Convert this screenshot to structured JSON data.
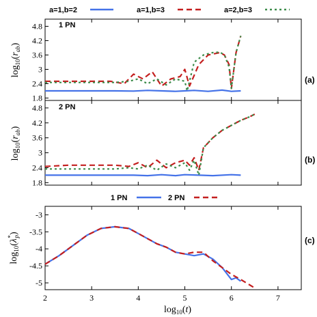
{
  "figure": {
    "x_label": "log₁₀(t)",
    "x_ticks": [
      "2",
      "3",
      "4",
      "5",
      "6",
      "7"
    ],
    "colors": {
      "blue": "#4472e8",
      "red": "#c41f1f",
      "green": "#3c8c4a"
    }
  },
  "chart_data": [
    {
      "type": "line",
      "panel_label": "1 PN",
      "tag": "(a)",
      "ylabel": "log₁₀(r_ab)",
      "y_ticks": [
        "1.8",
        "2.4",
        "3",
        "3.6",
        "4.2",
        "4.8"
      ],
      "xlim": [
        2,
        7.5
      ],
      "ylim": [
        1.7,
        5.1
      ],
      "legend_position": "top",
      "legend": [
        {
          "name": "a=1,b=2",
          "color": "blue",
          "dash": "solid"
        },
        {
          "name": "a=1,b=3",
          "color": "red",
          "dash": "dashed"
        },
        {
          "name": "a=2,b=3",
          "color": "green",
          "dash": "dotted"
        }
      ],
      "series": [
        {
          "name": "a=1,b=2",
          "color": "blue",
          "dash": "solid",
          "x": [
            2,
            2.5,
            3,
            3.5,
            3.9,
            4.2,
            4.5,
            4.8,
            5.0,
            5.2,
            5.5,
            5.8,
            6.0,
            6.2
          ],
          "y": [
            2.1,
            2.1,
            2.1,
            2.1,
            2.09,
            2.12,
            2.1,
            2.08,
            2.1,
            2.12,
            2.08,
            2.13,
            2.08,
            2.1
          ]
        },
        {
          "name": "a=1,b=3",
          "color": "red",
          "dash": "dashed",
          "x": [
            2,
            2.5,
            3,
            3.4,
            3.7,
            3.9,
            4.1,
            4.3,
            4.5,
            4.7,
            4.9,
            5.0,
            5.1,
            5.3,
            5.5,
            5.75,
            5.85,
            5.95,
            6.0,
            6.1,
            6.2
          ],
          "y": [
            2.5,
            2.5,
            2.5,
            2.5,
            2.4,
            2.8,
            2.6,
            2.9,
            2.3,
            2.6,
            2.7,
            3.0,
            2.3,
            3.2,
            3.6,
            3.7,
            3.6,
            3.2,
            2.2,
            3.7,
            4.4
          ]
        },
        {
          "name": "a=2,b=3",
          "color": "green",
          "dash": "dotted",
          "x": [
            2,
            2.5,
            3,
            3.5,
            3.8,
            4.0,
            4.2,
            4.4,
            4.6,
            4.8,
            5.0,
            5.05,
            5.2,
            5.4,
            5.6,
            5.75,
            5.85,
            5.95,
            6.0,
            6.1,
            6.2
          ],
          "y": [
            2.45,
            2.45,
            2.45,
            2.45,
            2.5,
            2.6,
            2.4,
            2.6,
            2.35,
            2.6,
            2.5,
            2.1,
            3.3,
            3.6,
            3.7,
            3.72,
            3.6,
            3.1,
            2.2,
            3.7,
            4.4
          ]
        }
      ]
    },
    {
      "type": "line",
      "panel_label": "2 PN",
      "tag": "(b)",
      "ylabel": "log₁₀(r_ab)",
      "y_ticks": [
        "1.8",
        "2.4",
        "3",
        "3.6",
        "4.2",
        "4.8"
      ],
      "xlim": [
        2,
        7.5
      ],
      "ylim": [
        1.7,
        5.1
      ],
      "series": [
        {
          "name": "a=1,b=2",
          "color": "blue",
          "dash": "solid",
          "x": [
            2,
            2.5,
            3,
            3.5,
            3.9,
            4.2,
            4.5,
            4.8,
            5.0,
            5.3,
            5.6,
            6.0,
            6.2
          ],
          "y": [
            2.1,
            2.1,
            2.1,
            2.1,
            2.1,
            2.08,
            2.12,
            2.08,
            2.12,
            2.1,
            2.08,
            2.12,
            2.1
          ]
        },
        {
          "name": "a=1,b=3",
          "color": "red",
          "dash": "dashed",
          "x": [
            2,
            2.5,
            3,
            3.5,
            3.8,
            4.0,
            4.2,
            4.4,
            4.6,
            4.8,
            5.0,
            5.1,
            5.2,
            5.3,
            5.4,
            5.6,
            5.8,
            6.0,
            6.2,
            6.4,
            6.5
          ],
          "y": [
            2.45,
            2.5,
            2.5,
            2.5,
            2.45,
            2.6,
            2.4,
            2.7,
            2.4,
            2.6,
            2.7,
            2.5,
            2.8,
            2.3,
            3.2,
            3.6,
            3.9,
            4.1,
            4.3,
            4.45,
            4.55
          ]
        },
        {
          "name": "a=2,b=3",
          "color": "green",
          "dash": "dotted",
          "x": [
            2,
            2.5,
            3,
            3.5,
            3.8,
            4.0,
            4.2,
            4.4,
            4.6,
            4.8,
            5.0,
            5.1,
            5.2,
            5.3,
            5.4,
            5.6,
            5.8,
            6.0,
            6.2,
            6.4,
            6.5
          ],
          "y": [
            2.35,
            2.35,
            2.35,
            2.35,
            2.4,
            2.35,
            2.5,
            2.3,
            2.55,
            2.4,
            2.6,
            2.3,
            2.7,
            2.1,
            3.2,
            3.6,
            3.9,
            4.1,
            4.3,
            4.45,
            4.55
          ]
        }
      ]
    },
    {
      "type": "line",
      "tag": "(c)",
      "ylabel": "log₁₀(λ*_p)",
      "y_ticks": [
        "-3",
        "-3.5",
        "-4",
        "-4.5",
        "-5"
      ],
      "xlim": [
        2,
        7.5
      ],
      "ylim": [
        -5.2,
        -2.75
      ],
      "legend_position": "top",
      "legend": [
        {
          "name": "1 PN",
          "color": "blue",
          "dash": "solid"
        },
        {
          "name": "2 PN",
          "color": "red",
          "dash": "dashed"
        }
      ],
      "series": [
        {
          "name": "1 PN",
          "color": "blue",
          "dash": "solid",
          "x": [
            2.0,
            2.3,
            2.6,
            2.9,
            3.2,
            3.5,
            3.8,
            4.0,
            4.2,
            4.4,
            4.6,
            4.8,
            5.0,
            5.2,
            5.4,
            5.6,
            5.8,
            6.0,
            6.1,
            6.2
          ],
          "y": [
            -4.45,
            -4.2,
            -3.9,
            -3.6,
            -3.4,
            -3.35,
            -3.4,
            -3.55,
            -3.7,
            -3.85,
            -3.95,
            -4.1,
            -4.15,
            -4.2,
            -4.15,
            -4.3,
            -4.55,
            -4.9,
            -4.85,
            -4.95
          ]
        },
        {
          "name": "2 PN",
          "color": "red",
          "dash": "dashed",
          "x": [
            2.0,
            2.3,
            2.6,
            2.9,
            3.2,
            3.5,
            3.8,
            4.0,
            4.2,
            4.4,
            4.6,
            4.8,
            5.0,
            5.2,
            5.4,
            5.6,
            5.8,
            6.0,
            6.2,
            6.5
          ],
          "y": [
            -4.45,
            -4.2,
            -3.9,
            -3.6,
            -3.4,
            -3.35,
            -3.4,
            -3.55,
            -3.7,
            -3.85,
            -3.95,
            -4.1,
            -4.15,
            -4.1,
            -4.1,
            -4.35,
            -4.55,
            -4.75,
            -4.9,
            -5.15
          ]
        }
      ]
    }
  ]
}
